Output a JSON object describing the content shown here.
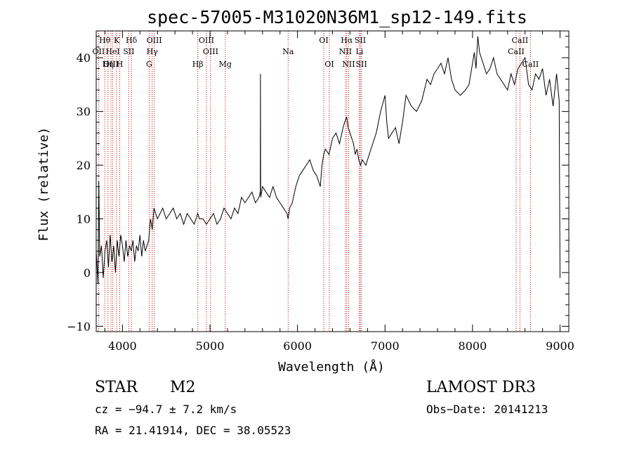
{
  "chart_data": {
    "type": "line",
    "title": "spec-57005-M31020N36M1_sp12-149.fits",
    "xlabel": "Wavelength (Å)",
    "ylabel": "Flux (relative)",
    "xlim": [
      3700,
      9100
    ],
    "ylim": [
      -11,
      45
    ],
    "xticks": [
      4000,
      5000,
      6000,
      7000,
      8000,
      9000
    ],
    "yticks": [
      -10,
      0,
      10,
      20,
      30,
      40
    ],
    "xtick_labels": [
      "4000",
      "5000",
      "6000",
      "7000",
      "8000",
      "9000"
    ],
    "ytick_labels": [
      "−10",
      "0",
      "10",
      "20",
      "30",
      "40"
    ],
    "series": [
      {
        "name": "flux",
        "x": [
          3700,
          3720,
          3730,
          3740,
          3760,
          3780,
          3800,
          3820,
          3840,
          3860,
          3880,
          3900,
          3920,
          3940,
          3960,
          3980,
          4000,
          4020,
          4040,
          4060,
          4080,
          4100,
          4120,
          4140,
          4160,
          4180,
          4200,
          4220,
          4240,
          4260,
          4280,
          4300,
          4320,
          4340,
          4360,
          4380,
          4400,
          4430,
          4460,
          4500,
          4540,
          4580,
          4620,
          4660,
          4700,
          4740,
          4780,
          4820,
          4860,
          4880,
          4920,
          4960,
          5000,
          5040,
          5080,
          5120,
          5160,
          5200,
          5240,
          5280,
          5320,
          5360,
          5400,
          5440,
          5480,
          5520,
          5560,
          5575,
          5577,
          5579,
          5600,
          5640,
          5680,
          5720,
          5760,
          5800,
          5840,
          5880,
          5893,
          5910,
          5940,
          5980,
          6020,
          6060,
          6100,
          6140,
          6180,
          6220,
          6260,
          6280,
          6300,
          6320,
          6360,
          6400,
          6440,
          6480,
          6520,
          6540,
          6562,
          6580,
          6600,
          6640,
          6660,
          6680,
          6700,
          6720,
          6740,
          6780,
          6820,
          6860,
          6900,
          6950,
          7000,
          7020,
          7040,
          7080,
          7120,
          7160,
          7200,
          7240,
          7300,
          7360,
          7420,
          7480,
          7520,
          7560,
          7600,
          7640,
          7680,
          7720,
          7760,
          7800,
          7860,
          7920,
          7960,
          8000,
          8020,
          8040,
          8060,
          8080,
          8120,
          8160,
          8200,
          8240,
          8280,
          8320,
          8360,
          8400,
          8440,
          8480,
          8520,
          8560,
          8600,
          8640,
          8680,
          8720,
          8760,
          8800,
          8840,
          8880,
          8920,
          8960,
          8990,
          9000
        ],
        "y": [
          4,
          -2,
          17,
          3,
          5,
          -1,
          4,
          6,
          1,
          7,
          2,
          5,
          0,
          6,
          3,
          7,
          5,
          2,
          6,
          3,
          5,
          4,
          6,
          2,
          5,
          4,
          7,
          3,
          6,
          4,
          5,
          6,
          10,
          8,
          12,
          11,
          10,
          11,
          12,
          10,
          11,
          12,
          10,
          11,
          9,
          11,
          10,
          9,
          11,
          10,
          10,
          9,
          10,
          11,
          9,
          10,
          12,
          11,
          10,
          12,
          11,
          14,
          13,
          14,
          15,
          13,
          14,
          15,
          37,
          14,
          16,
          15,
          14,
          16,
          14,
          13,
          12,
          11,
          10,
          12,
          13,
          16,
          18,
          19,
          20,
          21,
          19,
          18,
          16,
          20,
          22,
          23,
          22,
          25,
          26,
          24,
          27,
          28,
          29,
          27,
          26,
          24,
          22,
          23,
          21,
          20,
          21,
          20,
          22,
          24,
          26,
          30,
          33,
          28,
          25,
          26,
          27,
          24,
          28,
          33,
          31,
          30,
          32,
          36,
          35,
          37,
          38,
          39,
          37,
          40,
          36,
          34,
          33,
          34,
          35,
          39,
          41,
          38,
          44,
          41,
          39,
          37,
          38,
          40,
          37,
          36,
          35,
          34,
          37,
          35,
          38,
          39,
          40,
          35,
          34,
          37,
          36,
          38,
          33,
          36,
          31,
          37,
          32,
          -1
        ]
      }
    ],
    "spectral_lines": [
      {
        "name": "Hθ",
        "wave": 3798,
        "row": 0
      },
      {
        "name": "OII",
        "wave": 3727,
        "row": 1
      },
      {
        "name": "OIII",
        "wave": 3869,
        "row": 2
      },
      {
        "name": "K",
        "wave": 3934,
        "row": 0
      },
      {
        "name": "HeI",
        "wave": 3889,
        "row": 1
      },
      {
        "name": "Hη",
        "wave": 3835,
        "row": 2
      },
      {
        "name": "SII",
        "wave": 4072,
        "row": 1
      },
      {
        "name": "H",
        "wave": 3969,
        "row": 2
      },
      {
        "name": "Hδ",
        "wave": 4102,
        "row": 0
      },
      {
        "name": "OIII",
        "wave": 4363,
        "row": 0
      },
      {
        "name": "Hγ",
        "wave": 4340,
        "row": 1
      },
      {
        "name": "G",
        "wave": 4305,
        "row": 2
      },
      {
        "name": "OIII",
        "wave": 4959,
        "row": 0
      },
      {
        "name": "OIII",
        "wave": 5007,
        "row": 1
      },
      {
        "name": "Hβ",
        "wave": 4861,
        "row": 2
      },
      {
        "name": "Mg",
        "wave": 5175,
        "row": 2
      },
      {
        "name": "Na",
        "wave": 5893,
        "row": 1
      },
      {
        "name": "OI",
        "wave": 6300,
        "row": 0
      },
      {
        "name": "OI",
        "wave": 6364,
        "row": 2
      },
      {
        "name": "Hα",
        "wave": 6563,
        "row": 0
      },
      {
        "name": "NII",
        "wave": 6548,
        "row": 1
      },
      {
        "name": "NII",
        "wave": 6584,
        "row": 2
      },
      {
        "name": "SII",
        "wave": 6717,
        "row": 0
      },
      {
        "name": "Li",
        "wave": 6708,
        "row": 1
      },
      {
        "name": "SII",
        "wave": 6731,
        "row": 2
      },
      {
        "name": "CaII",
        "wave": 8542,
        "row": 0
      },
      {
        "name": "CaII",
        "wave": 8498,
        "row": 1
      },
      {
        "name": "CaII",
        "wave": 8662,
        "row": 2
      }
    ],
    "line_color": "#cc0000"
  },
  "info": {
    "class": "STAR",
    "subclass": "M2",
    "survey": "LAMOST DR3",
    "cz": "cz = −94.7 ± 7.2 km/s",
    "obs_date": "Obs−Date: 20141213",
    "coords": "RA =  21.41914, DEC =  38.05523"
  }
}
